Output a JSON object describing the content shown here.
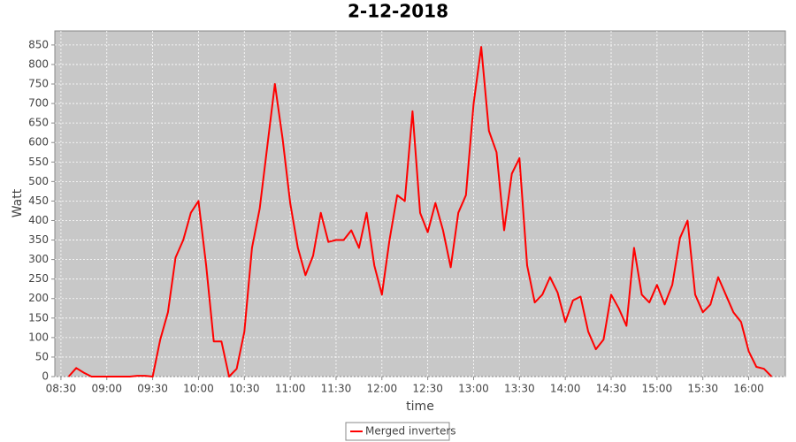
{
  "chart_data": {
    "type": "line",
    "title": "2-12-2018",
    "x_label": "time",
    "y_label": "Watt",
    "x": [
      "08:35",
      "08:40",
      "08:45",
      "08:50",
      "08:55",
      "09:00",
      "09:05",
      "09:10",
      "09:15",
      "09:20",
      "09:25",
      "09:30",
      "09:35",
      "09:40",
      "09:45",
      "09:50",
      "09:55",
      "10:00",
      "10:05",
      "10:10",
      "10:15",
      "10:20",
      "10:25",
      "10:30",
      "10:35",
      "10:40",
      "10:45",
      "10:50",
      "10:55",
      "11:00",
      "11:05",
      "11:10",
      "11:15",
      "11:20",
      "11:25",
      "11:30",
      "11:35",
      "11:40",
      "11:45",
      "11:50",
      "11:55",
      "12:00",
      "12:05",
      "12:10",
      "12:15",
      "12:20",
      "12:25",
      "12:30",
      "12:35",
      "12:40",
      "12:45",
      "12:50",
      "12:55",
      "13:00",
      "13:05",
      "13:10",
      "13:15",
      "13:20",
      "13:25",
      "13:30",
      "13:35",
      "13:40",
      "13:45",
      "13:50",
      "13:55",
      "14:00",
      "14:05",
      "14:10",
      "14:15",
      "14:20",
      "14:25",
      "14:30",
      "14:35",
      "14:40",
      "14:45",
      "14:50",
      "14:55",
      "15:00",
      "15:05",
      "15:10",
      "15:15",
      "15:20",
      "15:25",
      "15:30",
      "15:35",
      "15:40",
      "15:45",
      "15:50",
      "15:55",
      "16:00",
      "16:05",
      "16:10",
      "16:15"
    ],
    "series": [
      {
        "name": "Merged inverters",
        "color": "#ff0000",
        "values": [
          0,
          22,
          10,
          0,
          0,
          0,
          0,
          0,
          0,
          2,
          2,
          0,
          95,
          165,
          305,
          350,
          420,
          450,
          285,
          90,
          90,
          0,
          20,
          115,
          330,
          430,
          590,
          750,
          610,
          445,
          330,
          260,
          310,
          420,
          345,
          350,
          350,
          375,
          330,
          420,
          285,
          210,
          350,
          465,
          450,
          680,
          420,
          370,
          445,
          375,
          280,
          420,
          465,
          700,
          845,
          630,
          575,
          375,
          520,
          560,
          285,
          190,
          210,
          255,
          215,
          140,
          195,
          205,
          115,
          70,
          95,
          210,
          175,
          130,
          330,
          210,
          190,
          235,
          185,
          235,
          355,
          400,
          210,
          165,
          185,
          255,
          210,
          165,
          140,
          65,
          25,
          20,
          0
        ]
      }
    ],
    "xlim": [
      "08:26",
      "16:24"
    ],
    "xticks": [
      "08:30",
      "09:00",
      "09:30",
      "10:00",
      "10:30",
      "11:00",
      "11:30",
      "12:00",
      "12:30",
      "13:00",
      "13:30",
      "14:00",
      "14:30",
      "15:00",
      "15:30",
      "16:00"
    ],
    "ylim": [
      0,
      886
    ],
    "yticks": [
      0,
      50,
      100,
      150,
      200,
      250,
      300,
      350,
      400,
      450,
      500,
      550,
      600,
      650,
      700,
      750,
      800,
      850
    ],
    "grid": true,
    "legend": "bottom"
  }
}
